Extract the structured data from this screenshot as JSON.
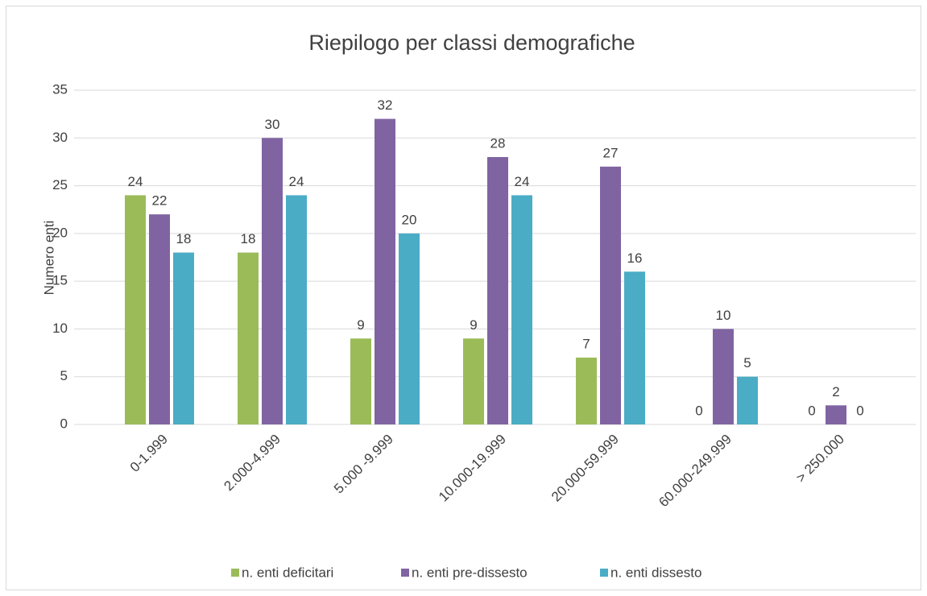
{
  "chart_data": {
    "type": "bar",
    "title": "Riepilogo per classi demografiche",
    "y_label": "Numero enti",
    "categories": [
      "0-1.999",
      "2.000-4.999",
      "5.000 -9.999",
      "10.000-19.999",
      "20.000-59.999",
      "60.000-249.999",
      "> 250.000"
    ],
    "series": [
      {
        "name": "n. enti deficitari",
        "color": "#9bbb59",
        "values": [
          24,
          18,
          9,
          9,
          7,
          0,
          0
        ]
      },
      {
        "name": "n. enti pre-dissesto",
        "color": "#8064a2",
        "values": [
          22,
          30,
          32,
          28,
          27,
          10,
          2
        ]
      },
      {
        "name": "n. enti dissesto",
        "color": "#4bacc6",
        "values": [
          18,
          24,
          20,
          24,
          16,
          5,
          0
        ]
      }
    ],
    "ylim": [
      0,
      35
    ],
    "yticks": [
      0,
      5,
      10,
      15,
      20,
      25,
      30,
      35
    ],
    "grid": true,
    "legend": "bottom"
  }
}
